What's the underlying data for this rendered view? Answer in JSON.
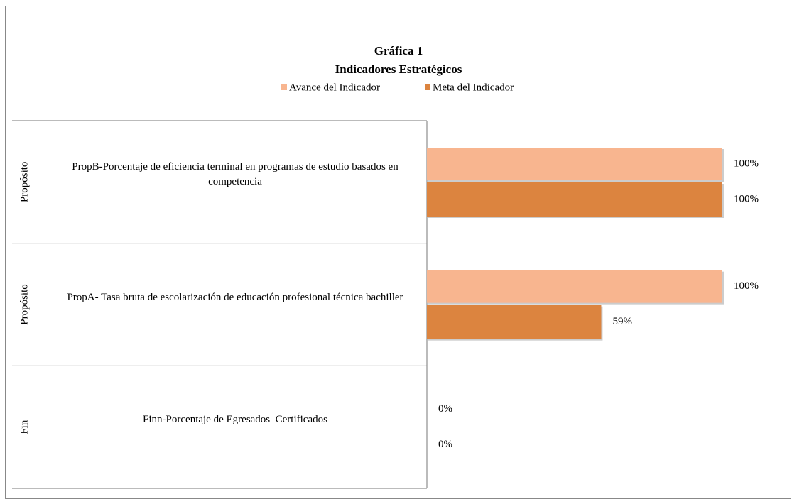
{
  "chart_data": {
    "type": "bar",
    "orientation": "horizontal",
    "title": "Gráfica 1",
    "subtitle": "Indicadores Estratégicos",
    "groups": [
      "Propósito",
      "Propósito",
      "Fin"
    ],
    "categories": [
      "PropB-Porcentaje de eficiencia terminal en programas de estudio basados en competencia",
      "PropA- Tasa bruta de escolarización de educación profesional técnica bachiller",
      "Finn-Porcentaje de Egresados  Certificados"
    ],
    "series": [
      {
        "name": "Avance del Indicador",
        "color": "#f8b58f",
        "values": [
          100,
          100,
          0
        ],
        "value_labels": [
          "100%",
          "100%",
          "0%"
        ]
      },
      {
        "name": "Meta del Indicador",
        "color": "#dc843f",
        "values": [
          100,
          59,
          0
        ],
        "value_labels": [
          "100%",
          "59%",
          "0%"
        ]
      }
    ]
  }
}
